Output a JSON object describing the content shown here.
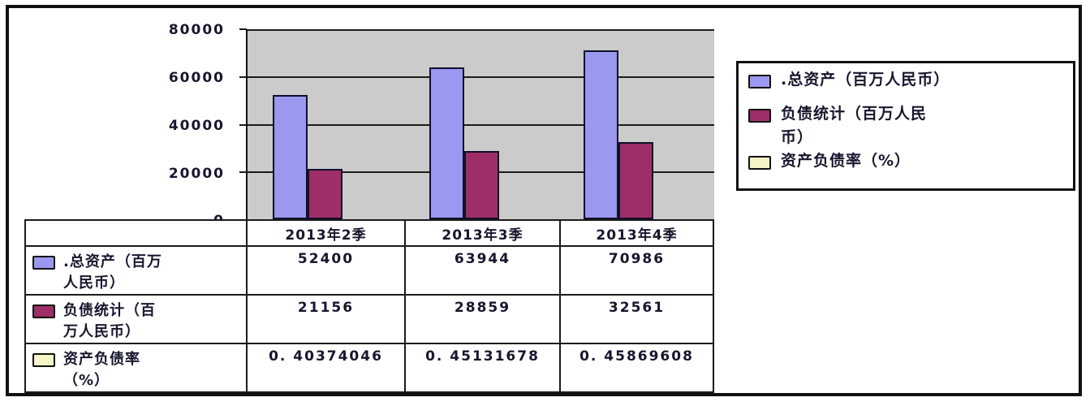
{
  "chart_data": {
    "type": "bar",
    "title": "",
    "categories": [
      "2013年2季",
      "2013年3季",
      "2013年4季"
    ],
    "series": [
      {
        "name": ".总资产（百万人民币）",
        "values": [
          52400,
          63944,
          70986
        ],
        "color": "#9b98f0"
      },
      {
        "name": "负债统计（百万人民币）",
        "values": [
          21156,
          28859,
          32561
        ],
        "color": "#9e2e67"
      },
      {
        "name": "资产负债率（%）",
        "values": [
          0.40374046,
          0.45131678,
          0.45869608
        ],
        "color": "#f5f5c8"
      }
    ],
    "ylim": [
      0,
      80000
    ],
    "y_ticks": [
      "80000",
      "60000",
      "40000",
      "20000",
      "0"
    ],
    "grid": "horizontal gridlines every 20000",
    "plot_background": "#cbcbcb",
    "legend_position": "right"
  },
  "legend": {
    "items": [
      {
        "lines": [
          ".总资产（百万人民币）",
          ""
        ],
        "color": "#9b98f0"
      },
      {
        "lines": [
          "负债统计（百万人民",
          "币）"
        ],
        "color": "#9e2e67"
      },
      {
        "lines": [
          "资产负债率（%）",
          ""
        ],
        "color": "#f5f5c8"
      }
    ]
  },
  "table": {
    "col_headers": [
      "2013年2季",
      "2013年3季",
      "2013年4季"
    ],
    "rows": [
      {
        "label_lines": [
          ".总资产（百万",
          "人民币）"
        ],
        "color": "#9b98f0",
        "values": [
          "52400",
          "63944",
          "70986"
        ]
      },
      {
        "label_lines": [
          "负债统计（百",
          "万人民币）"
        ],
        "color": "#9e2e67",
        "values": [
          "21156",
          "28859",
          "32561"
        ]
      },
      {
        "label_lines": [
          "资产负债率",
          "（%）"
        ],
        "color": "#f5f5c8",
        "values": [
          "0. 40374046",
          "0. 45131678",
          "0. 45869608"
        ]
      }
    ]
  },
  "colors": {
    "series1": "#9b98f0",
    "series2": "#9e2e67",
    "series3": "#f5f5c8",
    "plot_bg": "#cbcbcb",
    "line": "#1b1b1b"
  }
}
